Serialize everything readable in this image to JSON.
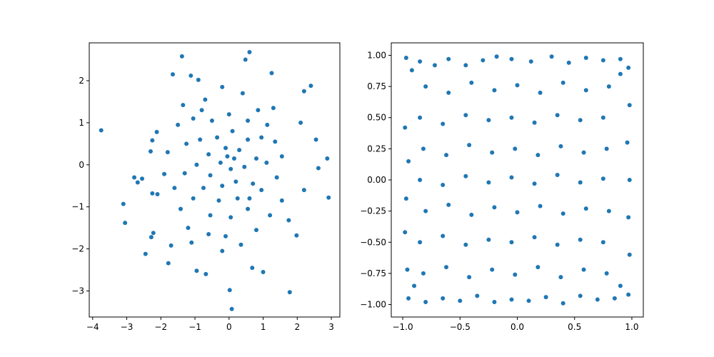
{
  "chart_data": [
    {
      "type": "scatter",
      "title": "",
      "xlabel": "",
      "ylabel": "",
      "xlim": [
        -4.1,
        3.25
      ],
      "ylim": [
        -3.62,
        2.9
      ],
      "xticks": [
        -4,
        -3,
        -2,
        -1,
        0,
        1,
        2,
        3
      ],
      "yticks": [
        -3,
        -2,
        -1,
        0,
        1,
        2
      ],
      "marker_color": "#1f77b4",
      "grid": false,
      "series": [
        {
          "points": [
            [
              -3.75,
              0.82
            ],
            [
              -3.1,
              -0.93
            ],
            [
              -3.05,
              -1.38
            ],
            [
              -2.78,
              -0.3
            ],
            [
              -2.68,
              -0.42
            ],
            [
              -2.55,
              -0.33
            ],
            [
              -2.45,
              -2.12
            ],
            [
              -2.28,
              -1.72
            ],
            [
              -2.22,
              -1.62
            ],
            [
              -2.25,
              -0.68
            ],
            [
              -2.1,
              -0.7
            ],
            [
              -2.3,
              0.32
            ],
            [
              -2.25,
              0.58
            ],
            [
              -2.12,
              0.78
            ],
            [
              -1.78,
              -2.34
            ],
            [
              -1.7,
              -1.92
            ],
            [
              -1.65,
              2.15
            ],
            [
              -1.38,
              2.58
            ],
            [
              -1.12,
              2.12
            ],
            [
              -0.9,
              2.02
            ],
            [
              0.48,
              2.5
            ],
            [
              0.6,
              2.68
            ],
            [
              1.25,
              2.18
            ],
            [
              2.4,
              1.88
            ],
            [
              2.2,
              1.75
            ],
            [
              2.55,
              0.6
            ],
            [
              2.62,
              -0.08
            ],
            [
              2.88,
              0.15
            ],
            [
              2.92,
              -0.78
            ],
            [
              2.2,
              -0.6
            ],
            [
              1.98,
              -1.68
            ],
            [
              1.78,
              -3.03
            ],
            [
              0.08,
              -3.43
            ],
            [
              0.02,
              -2.98
            ],
            [
              -0.95,
              -2.52
            ],
            [
              -0.68,
              -2.6
            ],
            [
              -0.2,
              -2.05
            ],
            [
              0.68,
              -2.45
            ],
            [
              1.0,
              -2.55
            ],
            [
              2.1,
              1.0
            ],
            [
              1.75,
              -1.32
            ],
            [
              1.55,
              -0.85
            ],
            [
              1.3,
              1.35
            ],
            [
              1.12,
              0.95
            ],
            [
              -1.2,
              -1.5
            ],
            [
              -1.5,
              0.95
            ],
            [
              -1.35,
              1.42
            ],
            [
              -1.8,
              0.3
            ],
            [
              -1.9,
              -0.22
            ],
            [
              -1.6,
              -0.55
            ],
            [
              -1.42,
              -1.05
            ],
            [
              -1.1,
              -1.85
            ],
            [
              -0.6,
              -1.65
            ],
            [
              -0.1,
              -1.7
            ],
            [
              0.35,
              -1.9
            ],
            [
              0.8,
              -1.55
            ],
            [
              1.2,
              -1.2
            ],
            [
              1.4,
              -0.3
            ],
            [
              1.55,
              0.2
            ],
            [
              1.35,
              0.55
            ],
            [
              0.85,
              1.3
            ],
            [
              0.4,
              1.7
            ],
            [
              -0.2,
              1.85
            ],
            [
              -0.7,
              1.55
            ],
            [
              -1.05,
              1.1
            ],
            [
              -1.25,
              0.5
            ],
            [
              -1.3,
              -0.2
            ],
            [
              -1.05,
              -0.8
            ],
            [
              -0.55,
              -1.2
            ],
            [
              0.05,
              -1.25
            ],
            [
              0.55,
              -1.05
            ],
            [
              0.95,
              -0.6
            ],
            [
              1.1,
              0.05
            ],
            [
              0.95,
              0.65
            ],
            [
              0.55,
              1.05
            ],
            [
              0.0,
              1.2
            ],
            [
              -0.5,
              1.05
            ],
            [
              -0.85,
              0.6
            ],
            [
              -0.95,
              0.0
            ],
            [
              -0.75,
              -0.55
            ],
            [
              -0.3,
              -0.85
            ],
            [
              0.25,
              -0.8
            ],
            [
              0.7,
              -0.45
            ],
            [
              0.8,
              0.15
            ],
            [
              0.55,
              0.6
            ],
            [
              0.1,
              0.8
            ],
            [
              -0.35,
              0.65
            ],
            [
              -0.6,
              0.25
            ],
            [
              -0.55,
              -0.25
            ],
            [
              -0.2,
              -0.5
            ],
            [
              0.2,
              -0.4
            ],
            [
              0.45,
              -0.05
            ],
            [
              0.3,
              0.35
            ],
            [
              -0.1,
              0.4
            ],
            [
              -0.25,
              0.05
            ],
            [
              0.05,
              -0.1
            ],
            [
              0.15,
              0.15
            ],
            [
              -0.05,
              0.2
            ],
            [
              0.6,
              -0.8
            ],
            [
              -0.8,
              1.3
            ]
          ]
        }
      ]
    },
    {
      "type": "scatter",
      "title": "",
      "xlabel": "",
      "ylabel": "",
      "xlim": [
        -1.1,
        1.1
      ],
      "ylim": [
        -1.1,
        1.1
      ],
      "xticks": [
        -1.0,
        -0.5,
        0.0,
        0.5,
        1.0
      ],
      "yticks": [
        -1.0,
        -0.75,
        -0.5,
        -0.25,
        0.0,
        0.25,
        0.5,
        0.75,
        1.0
      ],
      "marker_color": "#1f77b4",
      "grid": false,
      "series": [
        {
          "points": [
            [
              -0.97,
              0.98
            ],
            [
              -0.92,
              0.88
            ],
            [
              -0.85,
              0.95
            ],
            [
              -0.72,
              0.92
            ],
            [
              -0.6,
              0.97
            ],
            [
              -0.45,
              0.92
            ],
            [
              -0.3,
              0.96
            ],
            [
              -0.18,
              0.99
            ],
            [
              -0.05,
              0.97
            ],
            [
              0.12,
              0.95
            ],
            [
              0.3,
              0.99
            ],
            [
              0.45,
              0.94
            ],
            [
              0.6,
              0.98
            ],
            [
              0.75,
              0.96
            ],
            [
              0.9,
              0.97
            ],
            [
              0.97,
              0.9
            ],
            [
              -0.98,
              0.42
            ],
            [
              -0.95,
              0.15
            ],
            [
              -0.97,
              -0.15
            ],
            [
              -0.98,
              -0.42
            ],
            [
              -0.96,
              -0.72
            ],
            [
              -0.95,
              -0.95
            ],
            [
              -0.8,
              -0.98
            ],
            [
              -0.65,
              -0.95
            ],
            [
              -0.5,
              -0.97
            ],
            [
              -0.35,
              -0.93
            ],
            [
              -0.2,
              -0.98
            ],
            [
              -0.05,
              -0.96
            ],
            [
              0.1,
              -0.97
            ],
            [
              0.25,
              -0.94
            ],
            [
              0.4,
              -0.99
            ],
            [
              0.55,
              -0.93
            ],
            [
              0.7,
              -0.96
            ],
            [
              0.85,
              -0.95
            ],
            [
              0.97,
              -0.92
            ],
            [
              0.98,
              -0.6
            ],
            [
              0.97,
              -0.3
            ],
            [
              0.98,
              0.0
            ],
            [
              0.96,
              0.3
            ],
            [
              0.98,
              0.6
            ],
            [
              -0.8,
              0.75
            ],
            [
              -0.6,
              0.7
            ],
            [
              -0.4,
              0.78
            ],
            [
              -0.2,
              0.72
            ],
            [
              0.0,
              0.76
            ],
            [
              0.2,
              0.7
            ],
            [
              0.4,
              0.78
            ],
            [
              0.6,
              0.72
            ],
            [
              0.8,
              0.75
            ],
            [
              -0.85,
              0.5
            ],
            [
              -0.65,
              0.45
            ],
            [
              -0.45,
              0.52
            ],
            [
              -0.25,
              0.48
            ],
            [
              -0.05,
              0.5
            ],
            [
              0.15,
              0.46
            ],
            [
              0.35,
              0.52
            ],
            [
              0.55,
              0.48
            ],
            [
              0.75,
              0.5
            ],
            [
              -0.82,
              0.25
            ],
            [
              -0.62,
              0.2
            ],
            [
              -0.42,
              0.28
            ],
            [
              -0.22,
              0.22
            ],
            [
              -0.02,
              0.25
            ],
            [
              0.18,
              0.2
            ],
            [
              0.38,
              0.27
            ],
            [
              0.58,
              0.22
            ],
            [
              0.78,
              0.25
            ],
            [
              -0.85,
              0.0
            ],
            [
              -0.65,
              -0.04
            ],
            [
              -0.45,
              0.03
            ],
            [
              -0.25,
              -0.02
            ],
            [
              -0.05,
              0.02
            ],
            [
              0.15,
              -0.03
            ],
            [
              0.35,
              0.04
            ],
            [
              0.55,
              -0.02
            ],
            [
              0.75,
              0.01
            ],
            [
              -0.8,
              -0.25
            ],
            [
              -0.6,
              -0.2
            ],
            [
              -0.4,
              -0.28
            ],
            [
              -0.2,
              -0.22
            ],
            [
              0.0,
              -0.26
            ],
            [
              0.2,
              -0.21
            ],
            [
              0.4,
              -0.27
            ],
            [
              0.6,
              -0.23
            ],
            [
              0.8,
              -0.25
            ],
            [
              -0.85,
              -0.5
            ],
            [
              -0.65,
              -0.45
            ],
            [
              -0.45,
              -0.52
            ],
            [
              -0.25,
              -0.48
            ],
            [
              -0.05,
              -0.5
            ],
            [
              0.15,
              -0.46
            ],
            [
              0.35,
              -0.52
            ],
            [
              0.55,
              -0.48
            ],
            [
              0.75,
              -0.5
            ],
            [
              -0.82,
              -0.75
            ],
            [
              -0.62,
              -0.7
            ],
            [
              -0.42,
              -0.78
            ],
            [
              -0.22,
              -0.72
            ],
            [
              -0.02,
              -0.76
            ],
            [
              0.18,
              -0.7
            ],
            [
              0.38,
              -0.78
            ],
            [
              0.58,
              -0.72
            ],
            [
              0.78,
              -0.75
            ],
            [
              0.9,
              -0.85
            ],
            [
              -0.9,
              -0.85
            ],
            [
              0.9,
              0.85
            ]
          ]
        }
      ]
    }
  ]
}
